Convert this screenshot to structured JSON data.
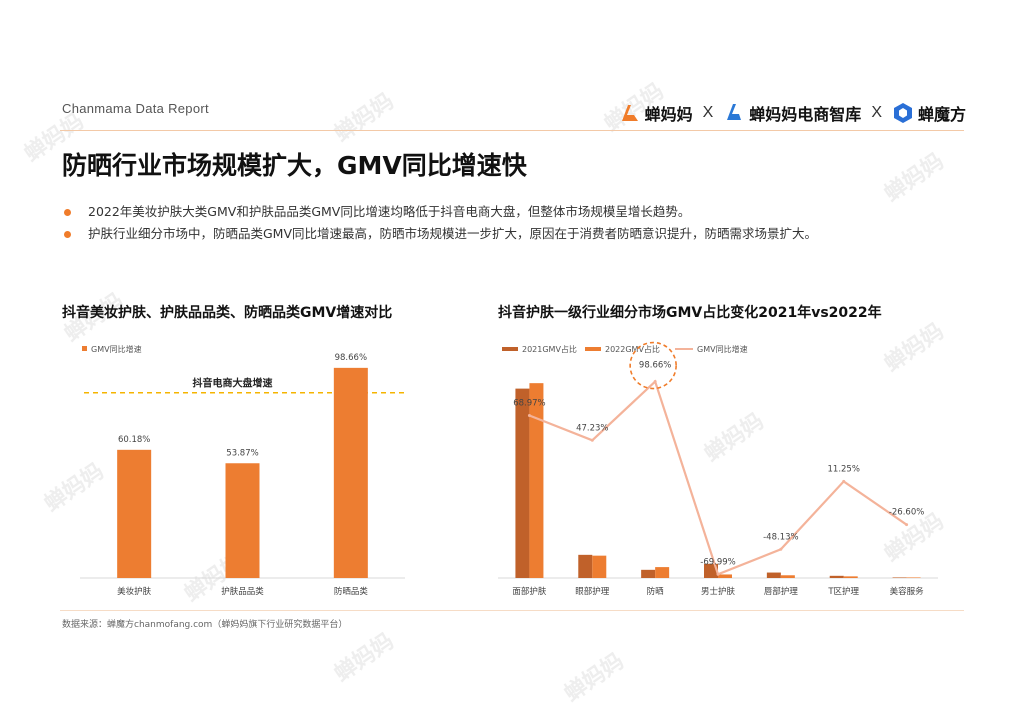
{
  "header": {
    "report_label": "Chanmama Data Report",
    "logos": [
      {
        "name": "蝉妈妈",
        "icon": "chanmama-logo-icon"
      },
      {
        "name": "蝉妈妈电商智库",
        "icon": "chanmama-think-tank-logo-icon"
      },
      {
        "name": "蝉魔方",
        "icon": "chanmofang-logo-icon"
      }
    ],
    "separator": "X"
  },
  "title": "防晒行业市场规模扩大，GMV同比增速快",
  "bullets": [
    "2022年美妆护肤大类GMV和护肤品品类GMV同比增速均略低于抖音电商大盘，但整体市场规模呈增长趋势。",
    "护肤行业细分市场中，防晒品类GMV同比增速最高，防晒市场规模进一步扩大，原因在于消费者防晒意识提升，防晒需求场景扩大。"
  ],
  "colors": {
    "accent": "#f07c2a",
    "bar_orange": "#ed7d31",
    "bar_dark": "#c0612a",
    "line_pink": "#f4b39a",
    "ref_line": "#f5b400"
  },
  "chart_data": [
    {
      "type": "bar",
      "title": "抖音美妆护肤、护肤品品类、防晒品类GMV增速对比",
      "legend": "GMV同比增速",
      "legend_position": "top-left",
      "categories": [
        "美妆护肤",
        "护肤品品类",
        "防晒品类"
      ],
      "values": [
        60.18,
        53.87,
        98.66
      ],
      "data_labels": [
        "60.18%",
        "53.87%",
        "98.66%"
      ],
      "ylim": [
        0,
        100
      ],
      "reference_line": {
        "label": "抖音电商大盘增速",
        "value": 87
      }
    },
    {
      "type": "bar",
      "title": "抖音护肤一级行业细分市场GMV占比变化2021年vs2022年",
      "legend_position": "top",
      "categories": [
        "面部护肤",
        "眼部护理",
        "防晒",
        "男士护肤",
        "唇部护理",
        "T区护理",
        "美容服务"
      ],
      "series": [
        {
          "name": "2021GMV占比",
          "type": "bar",
          "values": [
            69.5,
            8.5,
            3.0,
            5.2,
            2.0,
            0.8,
            0.2
          ]
        },
        {
          "name": "2022GMV占比",
          "type": "bar",
          "values": [
            71.5,
            8.2,
            4.0,
            1.3,
            1.0,
            0.6,
            0.2
          ]
        },
        {
          "name": "GMV同比增速",
          "type": "line",
          "values": [
            68.97,
            47.23,
            98.66,
            -69.99,
            -48.13,
            11.25,
            -26.6
          ],
          "data_labels": [
            "68.97%",
            "47.23%",
            "98.66%",
            "-69.99%",
            "-48.13%",
            "11.25%",
            "-26.60%"
          ]
        }
      ],
      "ylim_bar": [
        0,
        80
      ],
      "ylim_line": [
        -75,
        100
      ],
      "highlight": "防晒"
    }
  ],
  "source": "数据来源：蝉魔方chanmofang.com（蝉妈妈旗下行业研究数据平台）",
  "watermark": "蝉妈妈"
}
